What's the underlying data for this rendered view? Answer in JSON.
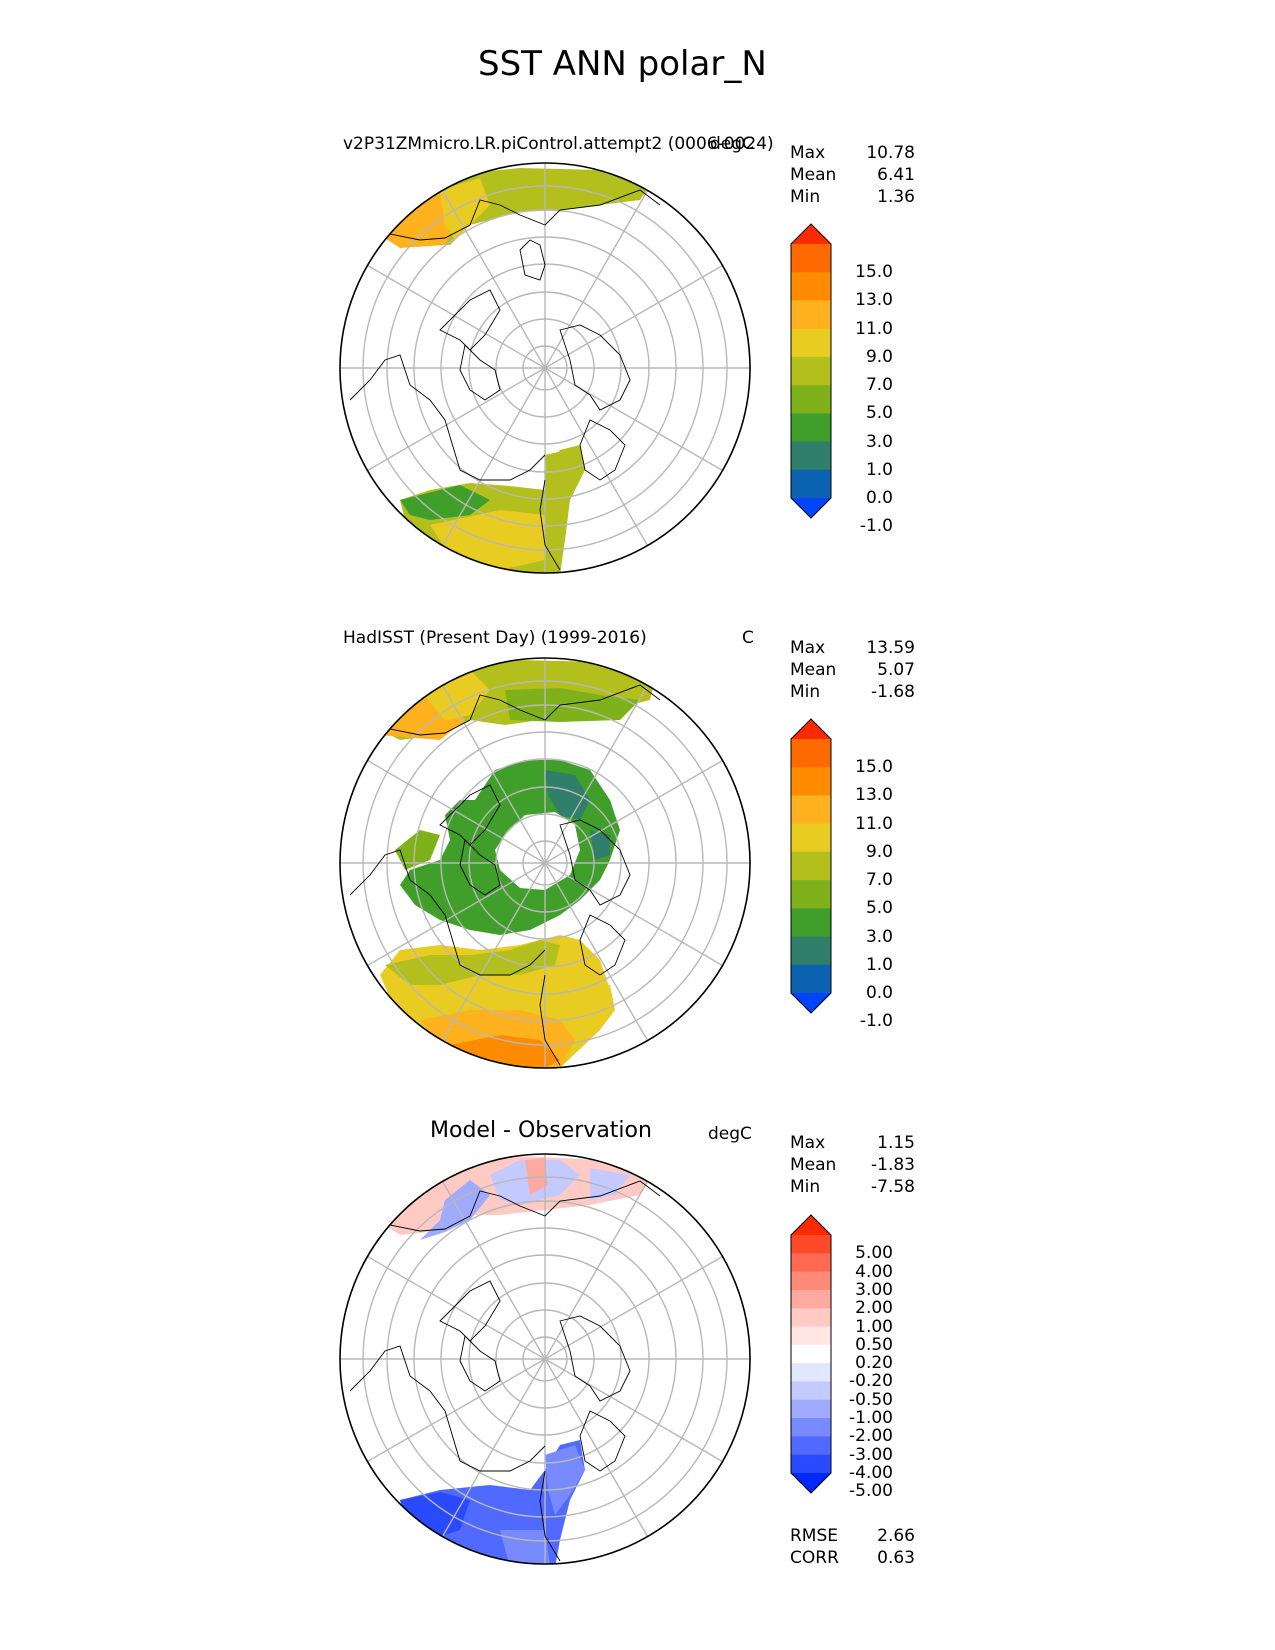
{
  "figure": {
    "title": "SST ANN polar_N"
  },
  "panels": [
    {
      "id": "model",
      "title": "v2P31ZMmicro.LR.piControl.attempt2 (0006-0024)",
      "units": "degC",
      "stats": [
        {
          "label": "Max",
          "value": "10.78"
        },
        {
          "label": "Mean",
          "value": "6.41"
        },
        {
          "label": "Min",
          "value": "1.36"
        }
      ],
      "colorbar": {
        "ticks": [
          "15.0",
          "13.0",
          "11.0",
          "9.0",
          "7.0",
          "5.0",
          "3.0",
          "1.0",
          "0.0",
          "-1.0"
        ],
        "colors": [
          "#ff2a00",
          "#ff6a00",
          "#ff8c00",
          "#ffb21e",
          "#e8cc22",
          "#b3bf1d",
          "#7fb21a",
          "#3f9f2a",
          "#2f7f6a",
          "#0a62b0",
          "#0044ff"
        ]
      }
    },
    {
      "id": "obs",
      "title": "HadISST (Present Day) (1999-2016)",
      "units": "C",
      "stats": [
        {
          "label": "Max",
          "value": "13.59"
        },
        {
          "label": "Mean",
          "value": "5.07"
        },
        {
          "label": "Min",
          "value": "-1.68"
        }
      ],
      "colorbar": {
        "ticks": [
          "15.0",
          "13.0",
          "11.0",
          "9.0",
          "7.0",
          "5.0",
          "3.0",
          "1.0",
          "0.0",
          "-1.0"
        ],
        "colors": [
          "#ff2a00",
          "#ff6a00",
          "#ff8c00",
          "#ffb21e",
          "#e8cc22",
          "#b3bf1d",
          "#7fb21a",
          "#3f9f2a",
          "#2f7f6a",
          "#0a62b0",
          "#0044ff"
        ]
      }
    },
    {
      "id": "diff",
      "title": "Model - Observation",
      "units": "degC",
      "stats": [
        {
          "label": "Max",
          "value": "1.15"
        },
        {
          "label": "Mean",
          "value": "-1.83"
        },
        {
          "label": "Min",
          "value": "-7.58"
        }
      ],
      "extra_stats": [
        {
          "label": "RMSE",
          "value": "2.66"
        },
        {
          "label": "CORR",
          "value": "0.63"
        }
      ],
      "colorbar": {
        "ticks": [
          "5.00",
          "4.00",
          "3.00",
          "2.00",
          "1.00",
          "0.50",
          "0.20",
          "-0.20",
          "-0.50",
          "-1.00",
          "-2.00",
          "-3.00",
          "-4.00",
          "-5.00"
        ],
        "colors": [
          "#ff2a00",
          "#ff4a2a",
          "#ff6a50",
          "#ff8a78",
          "#ffaaa0",
          "#ffcac4",
          "#ffe6e2",
          "#ffffff",
          "#e2e6ff",
          "#c4caff",
          "#a0aaff",
          "#788aff",
          "#506aff",
          "#2a4aff",
          "#0028ff"
        ]
      }
    }
  ]
}
